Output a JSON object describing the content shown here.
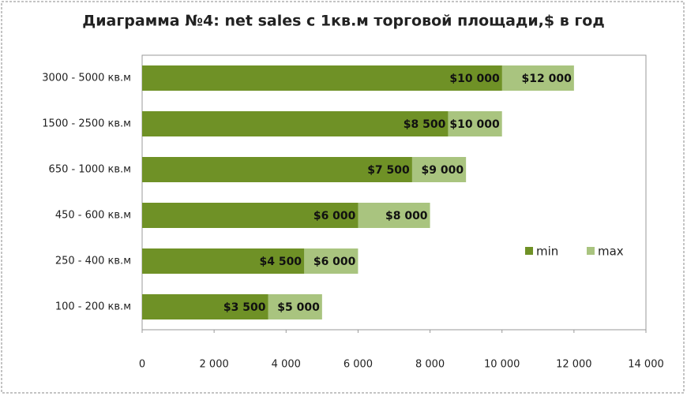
{
  "chart_data": {
    "type": "bar",
    "orientation": "horizontal",
    "overlap": true,
    "title": "Диаграмма №4: net sales с 1кв.м торговой площади,$ в год",
    "categories": [
      "3000 - 5000 кв.м",
      "1500 - 2500 кв.м",
      "650 - 1000 кв.м",
      "450 - 600 кв.м",
      "250 - 400 кв.м",
      "100 - 200 кв.м"
    ],
    "series": [
      {
        "name": "max",
        "color": "#a9c47f",
        "values": [
          12000,
          10000,
          9000,
          8000,
          6000,
          5000
        ],
        "value_labels": [
          "$12 000",
          "$10 000",
          "$9 000",
          "$8 000",
          "$6 000",
          "$5 000"
        ]
      },
      {
        "name": "min",
        "color": "#6f9126",
        "values": [
          10000,
          8500,
          7500,
          6000,
          4500,
          3500
        ],
        "value_labels": [
          "$10 000",
          "$8 500",
          "$7 500",
          "$6 000",
          "$4 500",
          "$3 500"
        ]
      }
    ],
    "xlim": [
      0,
      14000
    ],
    "xticks": [
      0,
      {
        "value": 2000,
        "label": "2 000"
      },
      {
        "value": 4000,
        "label": "4 000"
      },
      {
        "value": 6000,
        "label": "6 000"
      },
      {
        "value": 8000,
        "label": "8 000"
      },
      {
        "value": 10000,
        "label": "10 000"
      },
      {
        "value": 12000,
        "label": "12 000"
      },
      {
        "value": 14000,
        "label": "14 000"
      }
    ],
    "legend_position": "right"
  }
}
